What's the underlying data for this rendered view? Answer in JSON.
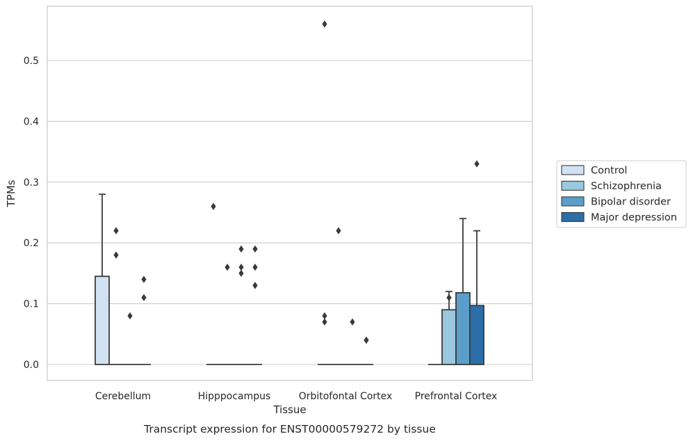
{
  "chart_data": {
    "type": "box",
    "xlabel": "Tissue",
    "ylabel": "TPMs",
    "caption": "Transcript expression for ENST00000579272 by tissue",
    "ylim": [
      -0.028,
      0.588
    ],
    "yticks": [
      0.0,
      0.1,
      0.2,
      0.3,
      0.4,
      0.5
    ],
    "ytick_labels": [
      "0.0",
      "0.1",
      "0.2",
      "0.3",
      "0.4",
      "0.5"
    ],
    "grid": "horizontal",
    "legend_position": "right",
    "categories": [
      "Cerebellum",
      "Hipppocampus",
      "Orbitofontal Cortex",
      "Prefrontal Cortex"
    ],
    "series": [
      {
        "name": "Control",
        "color": "#d1e2f2",
        "boxes": [
          {
            "q1": 0.0,
            "median": 0.0,
            "q3": 0.145,
            "whisker_low": 0.0,
            "whisker_high": 0.28,
            "outliers": []
          },
          {
            "q1": 0.0,
            "median": 0.0,
            "q3": 0.0,
            "whisker_low": 0.0,
            "whisker_high": 0.0,
            "outliers": [
              0.26
            ]
          },
          {
            "q1": 0.0,
            "median": 0.0,
            "q3": 0.0,
            "whisker_low": 0.0,
            "whisker_high": 0.0,
            "outliers": [
              0.56
            ]
          },
          {
            "q1": 0.0,
            "median": 0.0,
            "q3": 0.0,
            "whisker_low": 0.0,
            "whisker_high": 0.0,
            "outliers": []
          }
        ]
      },
      {
        "name": "Schizophrenia",
        "color": "#9ac8e0",
        "boxes": [
          {
            "q1": 0.0,
            "median": 0.0,
            "q3": 0.0,
            "whisker_low": 0.0,
            "whisker_high": 0.0,
            "outliers": [
              0.22,
              0.18
            ]
          },
          {
            "q1": 0.0,
            "median": 0.0,
            "q3": 0.0,
            "whisker_low": 0.0,
            "whisker_high": 0.0,
            "outliers": [
              0.16
            ]
          },
          {
            "q1": 0.0,
            "median": 0.0,
            "q3": 0.0,
            "whisker_low": 0.0,
            "whisker_high": 0.0,
            "outliers": [
              0.22
            ]
          },
          {
            "q1": 0.0,
            "median": 0.0,
            "q3": 0.09,
            "whisker_low": 0.0,
            "whisker_high": 0.12,
            "outliers": [
              0.11
            ]
          }
        ]
      },
      {
        "name": "Bipolar disorder",
        "color": "#5a9ec9",
        "boxes": [
          {
            "q1": 0.0,
            "median": 0.0,
            "q3": 0.0,
            "whisker_low": 0.0,
            "whisker_high": 0.0,
            "outliers": [
              0.08
            ]
          },
          {
            "q1": 0.0,
            "median": 0.0,
            "q3": 0.0,
            "whisker_low": 0.0,
            "whisker_high": 0.0,
            "outliers": [
              0.19,
              0.16,
              0.15
            ]
          },
          {
            "q1": 0.0,
            "median": 0.0,
            "q3": 0.0,
            "whisker_low": 0.0,
            "whisker_high": 0.0,
            "outliers": [
              0.07
            ]
          },
          {
            "q1": 0.0,
            "median": 0.0,
            "q3": 0.118,
            "whisker_low": 0.0,
            "whisker_high": 0.24,
            "outliers": []
          }
        ]
      },
      {
        "name": "Major depression",
        "color": "#2b6ea8",
        "boxes": [
          {
            "q1": 0.0,
            "median": 0.0,
            "q3": 0.0,
            "whisker_low": 0.0,
            "whisker_high": 0.0,
            "outliers": [
              0.14,
              0.11
            ]
          },
          {
            "q1": 0.0,
            "median": 0.0,
            "q3": 0.0,
            "whisker_low": 0.0,
            "whisker_high": 0.0,
            "outliers": [
              0.19,
              0.16,
              0.13
            ]
          },
          {
            "q1": 0.0,
            "median": 0.0,
            "q3": 0.0,
            "whisker_low": 0.0,
            "whisker_high": 0.0,
            "outliers": [
              0.04,
              0.04
            ]
          },
          {
            "q1": 0.0,
            "median": 0.0,
            "q3": 0.097,
            "whisker_low": 0.0,
            "whisker_high": 0.22,
            "outliers": [
              0.33
            ]
          }
        ]
      }
    ],
    "extra_outliers": [
      {
        "category_index": 2,
        "series_index": 0,
        "values": [
          0.08,
          0.07
        ]
      }
    ]
  }
}
